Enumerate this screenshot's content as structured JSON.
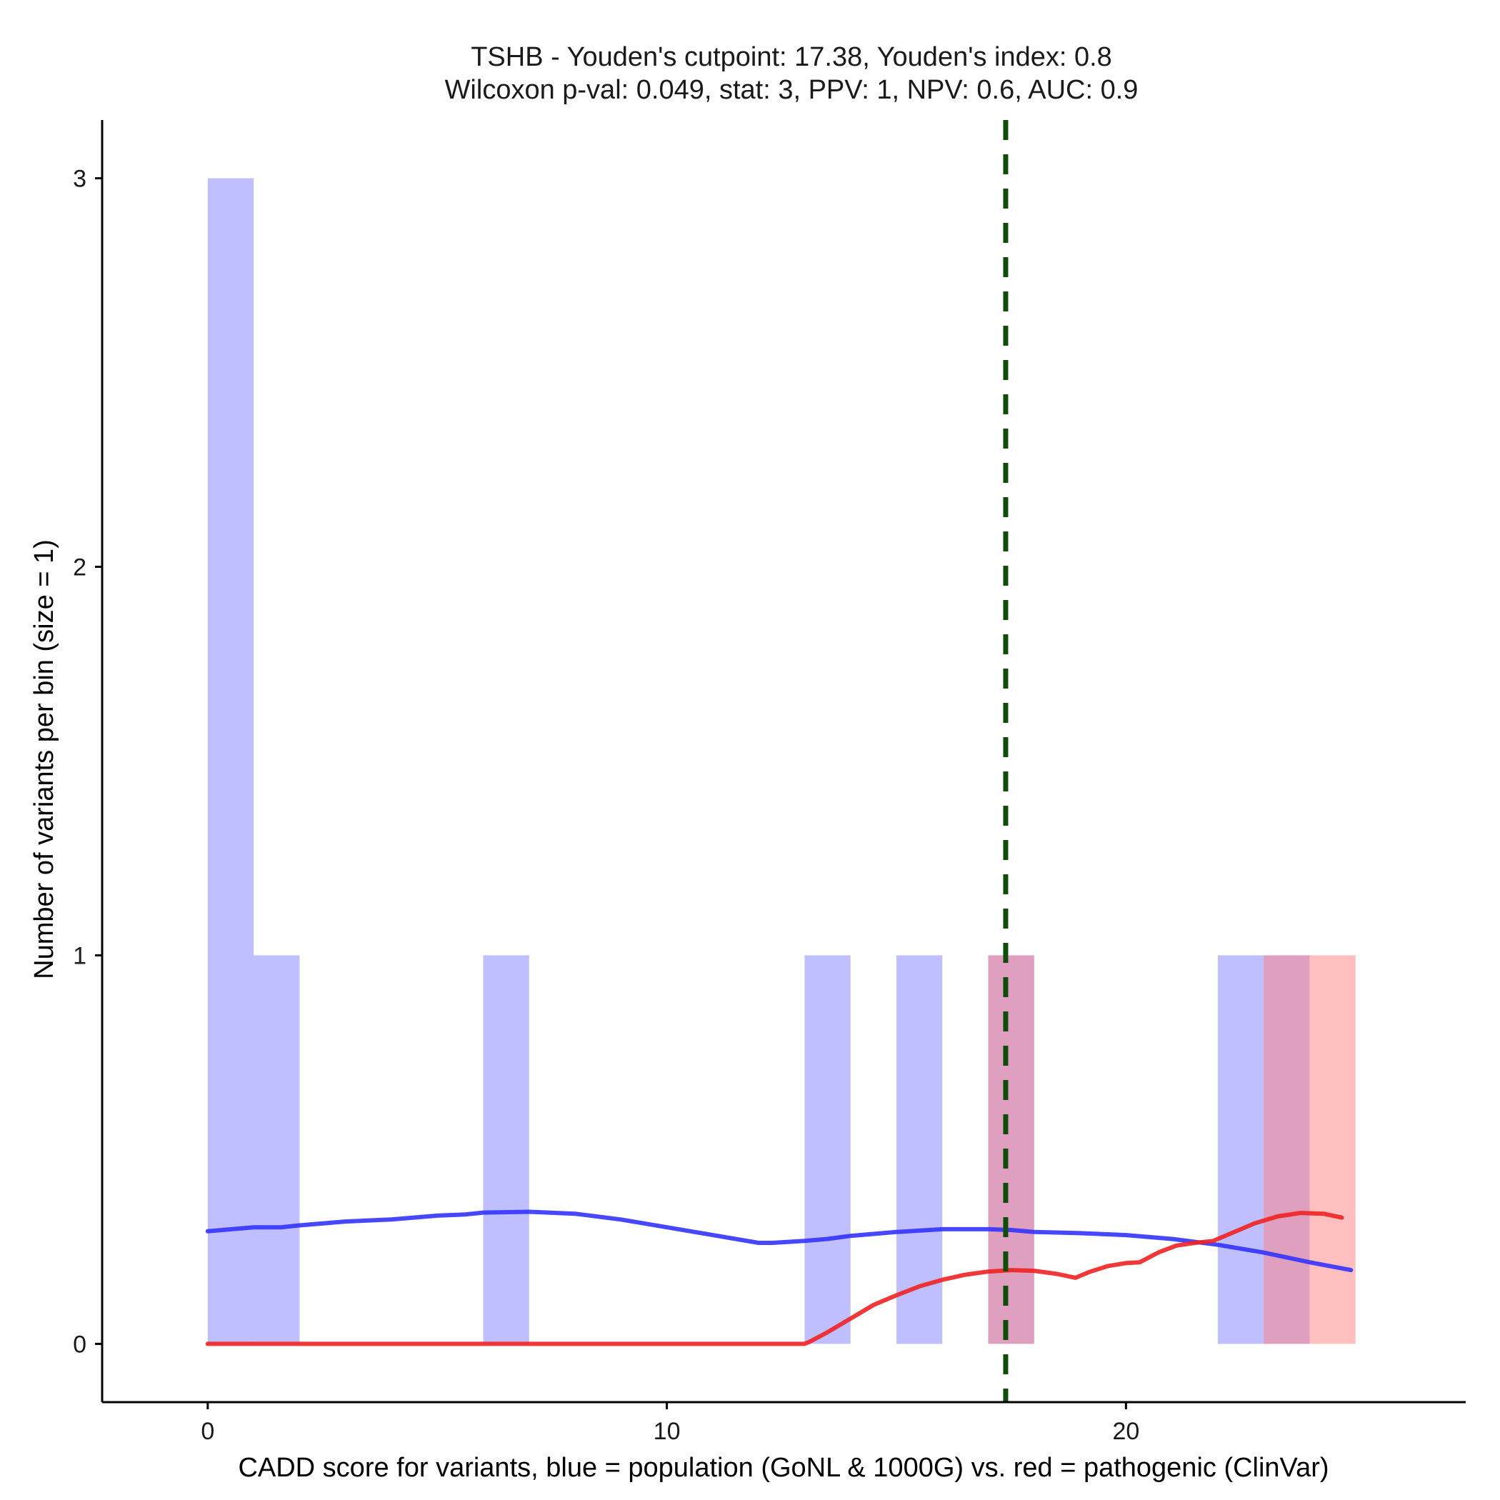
{
  "chart_data": {
    "type": "bar",
    "title": "TSHB - Youden's cutpoint: 17.38, Youden's index: 0.8",
    "subtitle": "Wilcoxon p-val: 0.049, stat: 3, PPV: 1, NPV: 0.6, AUC: 0.9",
    "xlabel": "CADD score for variants, blue = population (GoNL & 1000G) vs. red = pathogenic (ClinVar)",
    "ylabel": "Number of variants per bin (size = 1)",
    "xlim": [
      -2.3,
      27.4
    ],
    "ylim": [
      -0.15,
      3.15
    ],
    "x_ticks": [
      0,
      10,
      20
    ],
    "y_ticks": [
      0,
      1,
      2,
      3
    ],
    "bin_width": 1,
    "series": [
      {
        "name": "population (GoNL & 1000G)",
        "color": "#8080ff",
        "opacity": 0.5,
        "bins": [
          {
            "x0": 0,
            "x1": 1,
            "count": 3
          },
          {
            "x0": 1,
            "x1": 2,
            "count": 1
          },
          {
            "x0": 6,
            "x1": 7,
            "count": 1
          },
          {
            "x0": 13,
            "x1": 14,
            "count": 1
          },
          {
            "x0": 15,
            "x1": 16,
            "count": 1
          },
          {
            "x0": 17,
            "x1": 18,
            "count": 1
          },
          {
            "x0": 22,
            "x1": 23,
            "count": 1
          },
          {
            "x0": 23,
            "x1": 24,
            "count": 1
          }
        ]
      },
      {
        "name": "pathogenic (ClinVar)",
        "color": "#ff8080",
        "opacity": 0.5,
        "bins": [
          {
            "x0": 17,
            "x1": 18,
            "count": 1
          },
          {
            "x0": 23,
            "x1": 24,
            "count": 1
          },
          {
            "x0": 24,
            "x1": 25,
            "count": 1
          }
        ]
      }
    ],
    "smooth_lines": [
      {
        "name": "population smooth",
        "color": "#3333ff",
        "points": [
          [
            0,
            0.29
          ],
          [
            1,
            0.3
          ],
          [
            1.6,
            0.3
          ],
          [
            2,
            0.305
          ],
          [
            3,
            0.315
          ],
          [
            4,
            0.32
          ],
          [
            5,
            0.33
          ],
          [
            5.6,
            0.333
          ],
          [
            6,
            0.338
          ],
          [
            7,
            0.34
          ],
          [
            8,
            0.335
          ],
          [
            9,
            0.32
          ],
          [
            10,
            0.3
          ],
          [
            11,
            0.28
          ],
          [
            12,
            0.26
          ],
          [
            12.3,
            0.26
          ],
          [
            13,
            0.265
          ],
          [
            13.5,
            0.27
          ],
          [
            14,
            0.278
          ],
          [
            15,
            0.288
          ],
          [
            16,
            0.295
          ],
          [
            17,
            0.295
          ],
          [
            17.5,
            0.293
          ],
          [
            18,
            0.288
          ],
          [
            19,
            0.285
          ],
          [
            20,
            0.28
          ],
          [
            21,
            0.27
          ],
          [
            22,
            0.255
          ],
          [
            23,
            0.235
          ],
          [
            24,
            0.21
          ],
          [
            24.9,
            0.19
          ]
        ]
      },
      {
        "name": "pathogenic smooth",
        "color": "#ee2222",
        "points": [
          [
            0,
            0
          ],
          [
            5,
            0
          ],
          [
            10,
            0
          ],
          [
            13,
            0
          ],
          [
            13.1,
            0.005
          ],
          [
            13.5,
            0.03
          ],
          [
            14,
            0.065
          ],
          [
            14.5,
            0.1
          ],
          [
            15,
            0.125
          ],
          [
            15.5,
            0.148
          ],
          [
            16,
            0.165
          ],
          [
            16.5,
            0.178
          ],
          [
            17,
            0.186
          ],
          [
            17.5,
            0.19
          ],
          [
            18,
            0.188
          ],
          [
            18.5,
            0.18
          ],
          [
            18.9,
            0.17
          ],
          [
            19.2,
            0.185
          ],
          [
            19.6,
            0.2
          ],
          [
            20,
            0.208
          ],
          [
            20.3,
            0.21
          ],
          [
            20.7,
            0.235
          ],
          [
            21.1,
            0.253
          ],
          [
            21.5,
            0.26
          ],
          [
            21.9,
            0.265
          ],
          [
            22.3,
            0.285
          ],
          [
            22.8,
            0.31
          ],
          [
            23.3,
            0.328
          ],
          [
            23.8,
            0.337
          ],
          [
            24.3,
            0.335
          ],
          [
            24.7,
            0.325
          ]
        ]
      }
    ],
    "vlines": [
      {
        "name": "Youden's cutpoint",
        "x": 17.38,
        "color": "#114d0a",
        "style": "dashed"
      }
    ]
  }
}
